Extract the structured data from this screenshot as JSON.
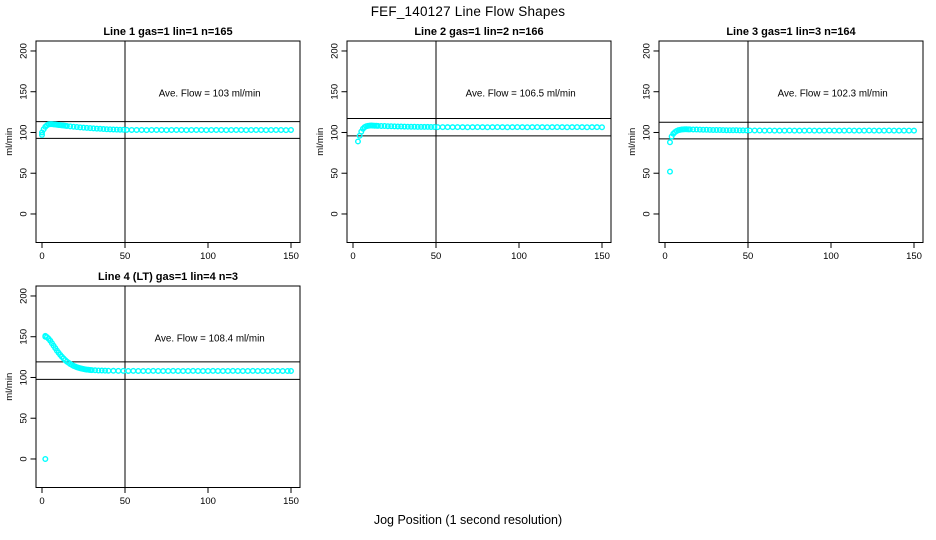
{
  "title": "FEF_140127  Line Flow Shapes",
  "xlabel": "Jog Position (1 second resolution)",
  "colors": {
    "marker": "#00FFFF",
    "axis": "#000000",
    "background": "#FFFFFF"
  },
  "chart_data": [
    {
      "type": "scatter",
      "title": "Line 1 gas=1 lin=1 n=165",
      "annotation": "Ave. Flow =  103  ml/min",
      "ave_flow": 103,
      "ylabel": "ml/min",
      "xticks": [
        0,
        50,
        100,
        150
      ],
      "yticks": [
        0,
        50,
        100,
        150,
        200
      ],
      "xlim": [
        -3.6,
        155.4
      ],
      "ylim": [
        -35,
        212
      ],
      "vline_x": 50,
      "ref_lines": [
        113.3,
        92.7
      ],
      "legend": "none",
      "grid": false,
      "points": [
        [
          0,
          97
        ],
        [
          0,
          100
        ],
        [
          1,
          104
        ],
        [
          2,
          107
        ],
        [
          3,
          108.8
        ],
        [
          4,
          110
        ],
        [
          5,
          110.3
        ],
        [
          6,
          110.2
        ],
        [
          7,
          110
        ],
        [
          8,
          109.8
        ],
        [
          9,
          109.5
        ],
        [
          10,
          109.2
        ],
        [
          11,
          109
        ],
        [
          12,
          108.7
        ],
        [
          13,
          108.5
        ],
        [
          14,
          108.2
        ],
        [
          15,
          108
        ],
        [
          17,
          107.5
        ],
        [
          19,
          107.1
        ],
        [
          21,
          106.7
        ],
        [
          23,
          106.3
        ],
        [
          25,
          105.9
        ],
        [
          27,
          105.6
        ],
        [
          29,
          105.3
        ],
        [
          31,
          105
        ],
        [
          33,
          104.7
        ],
        [
          35,
          104.5
        ],
        [
          37,
          104.2
        ],
        [
          39,
          104
        ],
        [
          41,
          103.8
        ],
        [
          43,
          103.7
        ],
        [
          45,
          103.5
        ],
        [
          47,
          103.4
        ],
        [
          49,
          103.3
        ],
        [
          51,
          103.2
        ],
        [
          54,
          103.1
        ],
        [
          57,
          103.1
        ],
        [
          60,
          103
        ],
        [
          63,
          102.9
        ],
        [
          66,
          103
        ],
        [
          69,
          103.1
        ],
        [
          72,
          103
        ],
        [
          75,
          102.9
        ],
        [
          78,
          103
        ],
        [
          81,
          103.1
        ],
        [
          84,
          103
        ],
        [
          87,
          102.9
        ],
        [
          90,
          103
        ],
        [
          93,
          103.1
        ],
        [
          96,
          103
        ],
        [
          99,
          102.9
        ],
        [
          102,
          103
        ],
        [
          105,
          103.1
        ],
        [
          108,
          103
        ],
        [
          111,
          102.9
        ],
        [
          114,
          103
        ],
        [
          117,
          103.1
        ],
        [
          120,
          103
        ],
        [
          123,
          102.9
        ],
        [
          126,
          103
        ],
        [
          129,
          103.1
        ],
        [
          132,
          103
        ],
        [
          135,
          102.9
        ],
        [
          138,
          103
        ],
        [
          141,
          103.1
        ],
        [
          144,
          103
        ],
        [
          147,
          102.9
        ],
        [
          150,
          103
        ]
      ]
    },
    {
      "type": "scatter",
      "title": "Line 2 gas=1 lin=2 n=166",
      "annotation": "Ave. Flow =  106.5  ml/min",
      "ave_flow": 106.5,
      "ylabel": "ml/min",
      "xticks": [
        0,
        50,
        100,
        150
      ],
      "yticks": [
        0,
        50,
        100,
        150,
        200
      ],
      "xlim": [
        -3.6,
        155.4
      ],
      "ylim": [
        -35,
        212
      ],
      "vline_x": 50,
      "ref_lines": [
        117.2,
        95.9
      ],
      "legend": "none",
      "grid": false,
      "points": [
        [
          3,
          89
        ],
        [
          4,
          96
        ],
        [
          5,
          101
        ],
        [
          6,
          104.5
        ],
        [
          7,
          106.5
        ],
        [
          8,
          107.6
        ],
        [
          9,
          108.1
        ],
        [
          10,
          108.4
        ],
        [
          11,
          108.5
        ],
        [
          12,
          108.4
        ],
        [
          13,
          108.3
        ],
        [
          14,
          108.2
        ],
        [
          15,
          108.1
        ],
        [
          17,
          108
        ],
        [
          19,
          107.9
        ],
        [
          21,
          107.7
        ],
        [
          23,
          107.6
        ],
        [
          25,
          107.5
        ],
        [
          27,
          107.4
        ],
        [
          29,
          107.3
        ],
        [
          31,
          107.2
        ],
        [
          33,
          107.1
        ],
        [
          35,
          107
        ],
        [
          37,
          107
        ],
        [
          39,
          106.9
        ],
        [
          41,
          106.9
        ],
        [
          43,
          106.8
        ],
        [
          45,
          106.8
        ],
        [
          47,
          106.7
        ],
        [
          49,
          106.7
        ],
        [
          51,
          106.6
        ],
        [
          54,
          106.6
        ],
        [
          57,
          106.5
        ],
        [
          60,
          106.5
        ],
        [
          63,
          106.6
        ],
        [
          66,
          106.5
        ],
        [
          69,
          106.4
        ],
        [
          72,
          106.5
        ],
        [
          75,
          106.6
        ],
        [
          78,
          106.5
        ],
        [
          81,
          106.4
        ],
        [
          84,
          106.5
        ],
        [
          87,
          106.6
        ],
        [
          90,
          106.5
        ],
        [
          93,
          106.4
        ],
        [
          96,
          106.5
        ],
        [
          99,
          106.6
        ],
        [
          102,
          106.5
        ],
        [
          105,
          106.4
        ],
        [
          108,
          106.5
        ],
        [
          111,
          106.6
        ],
        [
          114,
          106.5
        ],
        [
          117,
          106.4
        ],
        [
          120,
          106.5
        ],
        [
          123,
          106.6
        ],
        [
          126,
          106.5
        ],
        [
          129,
          106.4
        ],
        [
          132,
          106.5
        ],
        [
          135,
          106.6
        ],
        [
          138,
          106.5
        ],
        [
          141,
          106.4
        ],
        [
          144,
          106.5
        ],
        [
          147,
          106.5
        ],
        [
          150,
          106.4
        ]
      ]
    },
    {
      "type": "scatter",
      "title": "Line 3 gas=1 lin=3 n=164",
      "annotation": "Ave. Flow =  102.3  ml/min",
      "ave_flow": 102.3,
      "ylabel": "ml/min",
      "xticks": [
        0,
        50,
        100,
        150
      ],
      "yticks": [
        0,
        50,
        100,
        150,
        200
      ],
      "xlim": [
        -3.6,
        155.4
      ],
      "ylim": [
        -35,
        212
      ],
      "vline_x": 50,
      "ref_lines": [
        112.5,
        92.1
      ],
      "legend": "none",
      "grid": false,
      "points": [
        [
          3,
          52
        ],
        [
          3,
          88
        ],
        [
          4,
          95
        ],
        [
          5,
          98.5
        ],
        [
          6,
          100.5
        ],
        [
          7,
          101.8
        ],
        [
          8,
          102.7
        ],
        [
          9,
          103.2
        ],
        [
          10,
          103.6
        ],
        [
          11,
          103.8
        ],
        [
          12,
          103.9
        ],
        [
          13,
          103.9
        ],
        [
          14,
          103.8
        ],
        [
          15,
          103.8
        ],
        [
          17,
          103.7
        ],
        [
          19,
          103.6
        ],
        [
          21,
          103.5
        ],
        [
          23,
          103.4
        ],
        [
          25,
          103.3
        ],
        [
          27,
          103.2
        ],
        [
          29,
          103.1
        ],
        [
          31,
          103
        ],
        [
          33,
          103
        ],
        [
          35,
          102.9
        ],
        [
          37,
          102.8
        ],
        [
          39,
          102.8
        ],
        [
          41,
          102.7
        ],
        [
          43,
          102.7
        ],
        [
          45,
          102.6
        ],
        [
          47,
          102.6
        ],
        [
          49,
          102.5
        ],
        [
          51,
          102.5
        ],
        [
          54,
          102.4
        ],
        [
          57,
          102.4
        ],
        [
          60,
          102.3
        ],
        [
          63,
          102.4
        ],
        [
          66,
          102.3
        ],
        [
          69,
          102.2
        ],
        [
          72,
          102.3
        ],
        [
          75,
          102.4
        ],
        [
          78,
          102.3
        ],
        [
          81,
          102.2
        ],
        [
          84,
          102.3
        ],
        [
          87,
          102.4
        ],
        [
          90,
          102.3
        ],
        [
          93,
          102.2
        ],
        [
          96,
          102.3
        ],
        [
          99,
          102.4
        ],
        [
          102,
          102.3
        ],
        [
          105,
          102.2
        ],
        [
          108,
          102.3
        ],
        [
          111,
          102.4
        ],
        [
          114,
          102.3
        ],
        [
          117,
          102.2
        ],
        [
          120,
          102.3
        ],
        [
          123,
          102.4
        ],
        [
          126,
          102.3
        ],
        [
          129,
          102.2
        ],
        [
          132,
          102.3
        ],
        [
          135,
          102.4
        ],
        [
          138,
          102.3
        ],
        [
          141,
          102.2
        ],
        [
          144,
          102.3
        ],
        [
          147,
          102.3
        ],
        [
          150,
          102.2
        ]
      ]
    },
    {
      "type": "scatter",
      "title": "Line 4 (LT) gas=1 lin=4 n=3",
      "annotation": "Ave. Flow =  108.4  ml/min",
      "ave_flow": 108.4,
      "ylabel": "ml/min",
      "xticks": [
        0,
        50,
        100,
        150
      ],
      "yticks": [
        0,
        50,
        100,
        150,
        200
      ],
      "xlim": [
        -3.6,
        155.4
      ],
      "ylim": [
        -35,
        212
      ],
      "vline_x": 50,
      "ref_lines": [
        119.2,
        97.6
      ],
      "legend": "none",
      "grid": false,
      "points": [
        [
          2,
          0
        ],
        [
          2,
          150
        ],
        [
          2,
          151
        ],
        [
          3,
          149.5
        ],
        [
          4,
          147.5
        ],
        [
          5,
          145
        ],
        [
          6,
          142
        ],
        [
          7,
          139
        ],
        [
          8,
          136
        ],
        [
          9,
          133
        ],
        [
          10,
          130.3
        ],
        [
          11,
          127.8
        ],
        [
          12,
          125.5
        ],
        [
          13,
          123.3
        ],
        [
          14,
          121.3
        ],
        [
          15,
          119.5
        ],
        [
          16,
          118
        ],
        [
          17,
          116.6
        ],
        [
          18,
          115.4
        ],
        [
          19,
          114.3
        ],
        [
          20,
          113.4
        ],
        [
          21,
          112.6
        ],
        [
          22,
          111.9
        ],
        [
          23,
          111.3
        ],
        [
          24,
          110.8
        ],
        [
          25,
          110.4
        ],
        [
          26,
          110
        ],
        [
          27,
          109.7
        ],
        [
          28,
          109.5
        ],
        [
          29,
          109.2
        ],
        [
          30,
          109
        ],
        [
          32,
          108.8
        ],
        [
          34,
          108.6
        ],
        [
          36,
          108.5
        ],
        [
          38,
          108.4
        ],
        [
          40,
          108.3
        ],
        [
          43,
          108.2
        ],
        [
          46,
          108.1
        ],
        [
          49,
          108.1
        ],
        [
          52,
          108
        ],
        [
          55,
          108.1
        ],
        [
          58,
          108
        ],
        [
          61,
          107.9
        ],
        [
          64,
          108
        ],
        [
          67,
          108.1
        ],
        [
          70,
          108
        ],
        [
          73,
          107.9
        ],
        [
          76,
          108
        ],
        [
          79,
          108.1
        ],
        [
          82,
          108
        ],
        [
          85,
          107.9
        ],
        [
          88,
          108
        ],
        [
          91,
          108.1
        ],
        [
          94,
          108
        ],
        [
          97,
          107.9
        ],
        [
          100,
          108
        ],
        [
          103,
          108.1
        ],
        [
          106,
          108
        ],
        [
          109,
          107.9
        ],
        [
          112,
          108
        ],
        [
          115,
          108.1
        ],
        [
          118,
          108
        ],
        [
          121,
          107.9
        ],
        [
          124,
          108
        ],
        [
          127,
          108.1
        ],
        [
          130,
          108
        ],
        [
          133,
          107.9
        ],
        [
          136,
          108
        ],
        [
          139,
          107.9
        ],
        [
          142,
          108
        ],
        [
          145,
          107.9
        ],
        [
          148,
          108
        ],
        [
          150,
          108
        ]
      ]
    }
  ]
}
